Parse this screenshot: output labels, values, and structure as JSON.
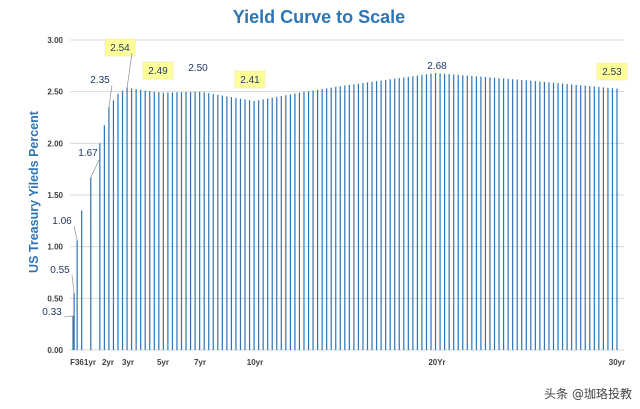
{
  "chart_data": {
    "type": "bar",
    "title": "Yield Curve to Scale",
    "ylabel": "US Treasury Yileds Percent",
    "xlabel": "",
    "ylim": [
      0,
      3
    ],
    "yticks": [
      "0.00",
      "0.50",
      "1.00",
      "1.50",
      "2.00",
      "2.50",
      "3.00"
    ],
    "grid": true,
    "legend": "none",
    "x_unit": "month",
    "x_range": [
      0.25,
      360
    ],
    "bar_color": "#2e75b6",
    "highlight_color": "#ffff99",
    "xtick_labels": [
      {
        "label": "F36",
        "x": 0.5
      },
      {
        "label": "1yr",
        "x": 12
      },
      {
        "label": "2yr",
        "x": 24
      },
      {
        "label": "3yr",
        "x": 36
      },
      {
        "label": "5yr",
        "x": 60
      },
      {
        "label": "7yr",
        "x": 84
      },
      {
        "label": "10yr",
        "x": 120
      },
      {
        "label": "20Yr",
        "x": 240
      },
      {
        "label": "30yr",
        "x": 360
      }
    ],
    "key_points": [
      {
        "x": 0.25,
        "y": 0.33
      },
      {
        "x": 1,
        "y": 0.55
      },
      {
        "x": 3,
        "y": 1.06
      },
      {
        "x": 6,
        "y": 1.35
      },
      {
        "x": 12,
        "y": 1.67
      },
      {
        "x": 18,
        "y": 2.0
      },
      {
        "x": 24,
        "y": 2.35
      },
      {
        "x": 30,
        "y": 2.48
      },
      {
        "x": 36,
        "y": 2.54
      },
      {
        "x": 48,
        "y": 2.51
      },
      {
        "x": 60,
        "y": 2.49
      },
      {
        "x": 84,
        "y": 2.5
      },
      {
        "x": 108,
        "y": 2.44
      },
      {
        "x": 120,
        "y": 2.41
      },
      {
        "x": 150,
        "y": 2.49
      },
      {
        "x": 180,
        "y": 2.56
      },
      {
        "x": 240,
        "y": 2.68
      },
      {
        "x": 300,
        "y": 2.61
      },
      {
        "x": 360,
        "y": 2.53
      }
    ],
    "data_labels": [
      {
        "text": "0.33",
        "x": 0.25,
        "y": 0.33,
        "highlight": false
      },
      {
        "text": "0.55",
        "x": 1,
        "y": 0.55,
        "highlight": false
      },
      {
        "text": "1.06",
        "x": 3,
        "y": 1.06,
        "highlight": false
      },
      {
        "text": "1.67",
        "x": 12,
        "y": 1.67,
        "highlight": false
      },
      {
        "text": "2.35",
        "x": 24,
        "y": 2.35,
        "highlight": false
      },
      {
        "text": "2.54",
        "x": 36,
        "y": 2.54,
        "highlight": true
      },
      {
        "text": "2.49",
        "x": 60,
        "y": 2.49,
        "highlight": true
      },
      {
        "text": "2.50",
        "x": 84,
        "y": 2.5,
        "highlight": false
      },
      {
        "text": "2.41",
        "x": 120,
        "y": 2.41,
        "highlight": true
      },
      {
        "text": "2.68",
        "x": 240,
        "y": 2.68,
        "highlight": false
      },
      {
        "text": "2.53",
        "x": 360,
        "y": 2.53,
        "highlight": true
      }
    ]
  },
  "watermark": "头条 @珈珞投教"
}
